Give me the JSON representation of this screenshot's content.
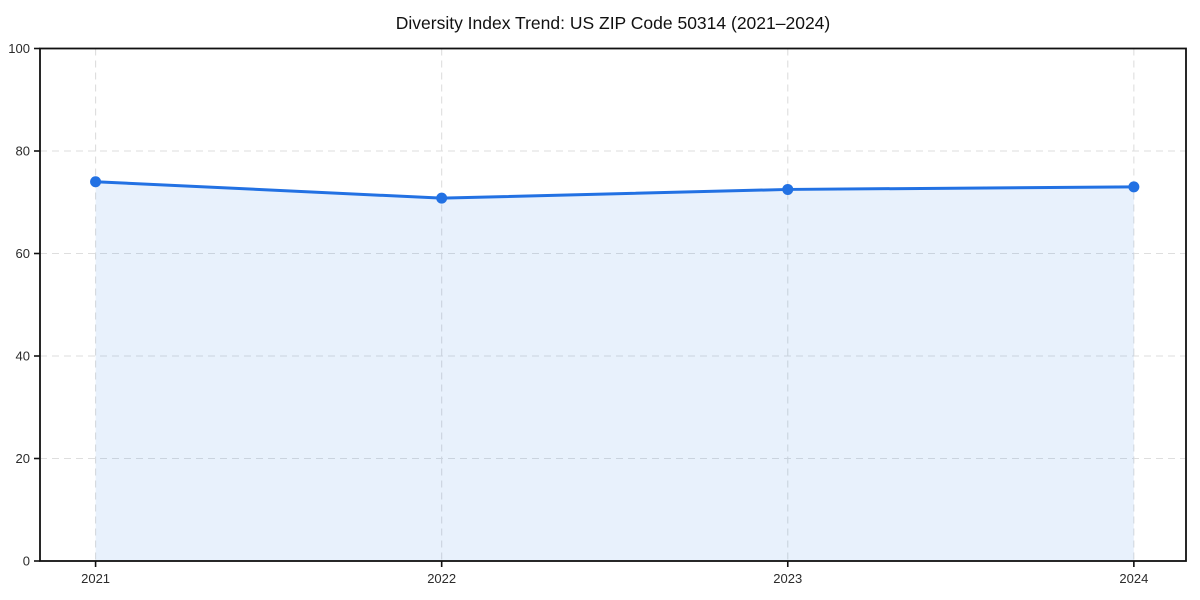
{
  "chart_data": {
    "type": "area",
    "title": "Diversity Index Trend: US ZIP Code 50314 (2021–2024)",
    "categories": [
      "2021",
      "2022",
      "2023",
      "2024"
    ],
    "values": [
      74,
      70.8,
      72.5,
      73
    ],
    "xlabel": "",
    "ylabel": "",
    "ylim": [
      0,
      100
    ],
    "yticks": [
      0,
      20,
      40,
      60,
      80,
      100
    ],
    "grid": true,
    "grid_style": "dashed",
    "legend": false,
    "marker": "circle",
    "colors": {
      "line": "#2271e3",
      "marker": "#2271e3",
      "fill": "#2271e3",
      "fill_opacity": 0.1,
      "grid": "#dedede",
      "axis": "#111111",
      "tick_label": "#2b2b2b",
      "title": "#111111",
      "background": "#ffffff"
    }
  }
}
